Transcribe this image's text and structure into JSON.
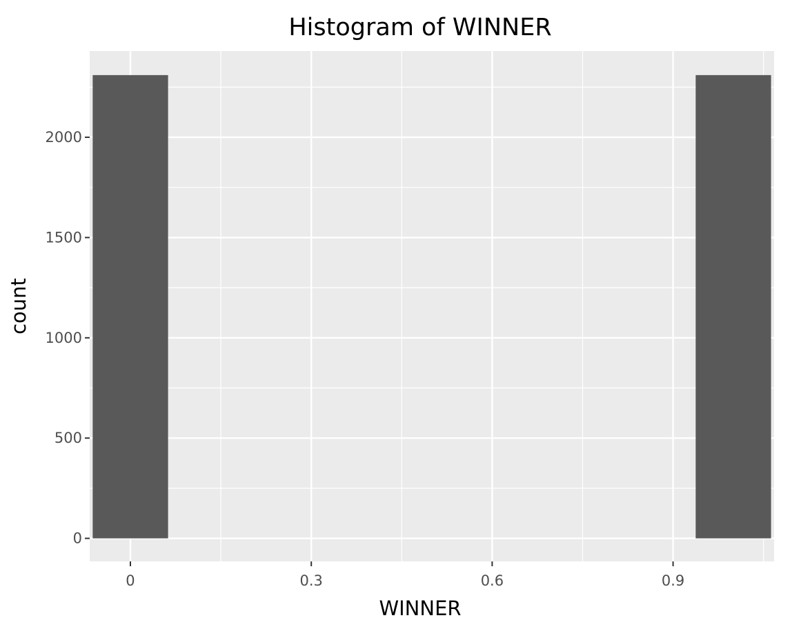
{
  "chart_data": {
    "type": "bar",
    "title": "Histogram of WINNER",
    "xlabel": "WINNER",
    "ylabel": "count",
    "xlim": [
      -0.0675,
      1.0675
    ],
    "ylim": [
      -115,
      2430
    ],
    "x_ticks": [
      0,
      0.3,
      0.6,
      0.9
    ],
    "x_tick_labels": [
      "0",
      "0.3",
      "0.6",
      "0.9"
    ],
    "y_ticks": [
      0,
      500,
      1000,
      1500,
      2000
    ],
    "y_tick_labels": [
      "0",
      "500",
      "1000",
      "1500",
      "2000"
    ],
    "x_minor_grid": [
      0.15,
      0.45,
      0.75,
      1.05
    ],
    "y_minor_grid": [
      250,
      750,
      1250,
      1750,
      2250
    ],
    "bars": [
      {
        "x_start": -0.0625,
        "x_end": 0.0625,
        "value": 2310
      },
      {
        "x_start": 0.9375,
        "x_end": 1.0625,
        "value": 2310
      }
    ],
    "grid": true,
    "legend": "none",
    "colors": {
      "panel_background": "#EBEBEB",
      "grid_line": "#FFFFFF",
      "bar_fill": "#595959",
      "tick_label": "#4D4D4D",
      "axis_title": "#000000"
    }
  }
}
